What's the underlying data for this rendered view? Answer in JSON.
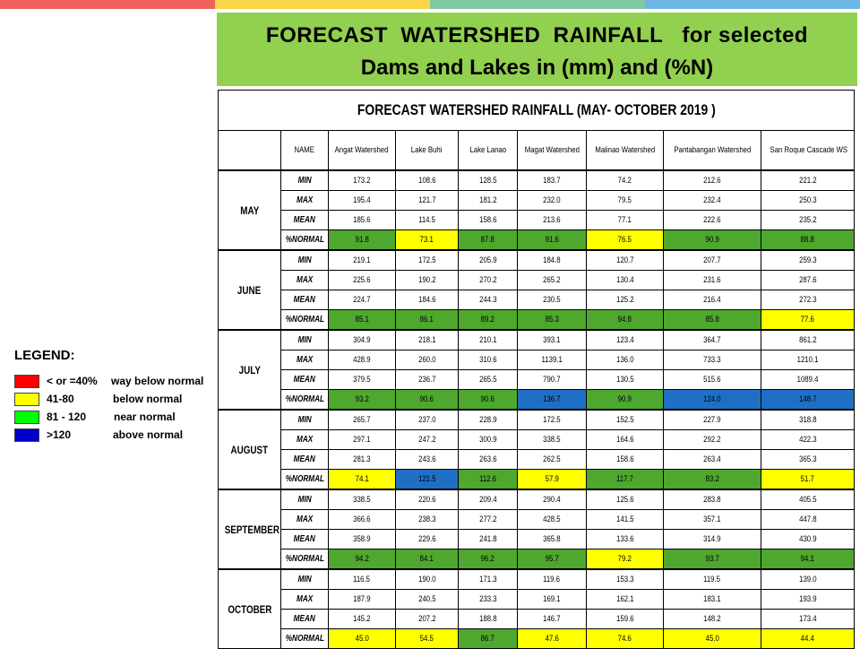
{
  "topbar_colors": [
    "#f0625d",
    "#f9d648",
    "#7fc9a4",
    "#6fb6e6"
  ],
  "banner": {
    "line1": "FORECAST  WATERSHED  RAINFALL   for selected",
    "line2": "Dams and Lakes in (mm) and (%N)",
    "bg_color": "#92d050"
  },
  "legend": {
    "title": "LEGEND:",
    "items": [
      {
        "range": "< or =40%",
        "desc": "way below normal",
        "color": "#ff0000"
      },
      {
        "range": "41-80",
        "desc": "below normal",
        "color": "#ffff00"
      },
      {
        "range": "81 - 120",
        "desc": "near normal",
        "color": "#00ff00"
      },
      {
        "range": ">120",
        "desc": "above normal",
        "color": "#0000cc"
      }
    ]
  },
  "table": {
    "title": "FORECAST WATERSHED RAINFALL (MAY- OCTOBER 2019 )",
    "name_header": "NAME",
    "columns": [
      "Angat Watershed",
      "Lake Buhi",
      "Lake Lanao",
      "Magat Watershed",
      "Malinao Watershed",
      "Pantabangan Watershed",
      "San Roque Cascade WS"
    ],
    "stat_labels": [
      "MIN",
      "MAX",
      "MEAN",
      "%NORMAL"
    ],
    "fill_colors": {
      "below": "#ffff00",
      "near": "#4ea72e",
      "above": "#1f6fc5"
    },
    "months": [
      {
        "name": "MAY",
        "min": [
          "173.2",
          "108.6",
          "128.5",
          "183.7",
          "74.2",
          "212.6",
          "221.2"
        ],
        "max": [
          "195.4",
          "121.7",
          "181.2",
          "232.0",
          "79.5",
          "232.4",
          "250.3"
        ],
        "mean": [
          "185.6",
          "114.5",
          "158.6",
          "213.6",
          "77.1",
          "222.6",
          "235.2"
        ],
        "normal": [
          "91.8",
          "73.1",
          "87.8",
          "91.6",
          "76.5",
          "90.9",
          "88.8"
        ],
        "normal_class": [
          "near",
          "below",
          "near",
          "near",
          "below",
          "near",
          "near"
        ]
      },
      {
        "name": "JUNE",
        "min": [
          "219.1",
          "172.5",
          "205.9",
          "184.8",
          "120.7",
          "207.7",
          "259.3"
        ],
        "max": [
          "225.6",
          "190.2",
          "270.2",
          "265.2",
          "130.4",
          "231.6",
          "287.6"
        ],
        "mean": [
          "224.7",
          "184.6",
          "244.3",
          "230.5",
          "125.2",
          "216.4",
          "272.3"
        ],
        "normal": [
          "85.1",
          "86.1",
          "89.2",
          "85.3",
          "94.8",
          "85.8",
          "77.6"
        ],
        "normal_class": [
          "near",
          "near",
          "near",
          "near",
          "near",
          "near",
          "below"
        ]
      },
      {
        "name": "JULY",
        "min": [
          "304.9",
          "218.1",
          "210.1",
          "393.1",
          "123.4",
          "364.7",
          "861.2"
        ],
        "max": [
          "428.9",
          "260.0",
          "310.6",
          "1139.1",
          "136.0",
          "733.3",
          "1210.1"
        ],
        "mean": [
          "379.5",
          "236.7",
          "265.5",
          "790.7",
          "130.5",
          "515.6",
          "1089.4"
        ],
        "normal": [
          "93.2",
          "90.6",
          "90.6",
          "136.7",
          "90.9",
          "124.0",
          "148.7"
        ],
        "normal_class": [
          "near",
          "near",
          "near",
          "above",
          "near",
          "above",
          "above"
        ]
      },
      {
        "name": "AUGUST",
        "min": [
          "265.7",
          "237.0",
          "228.9",
          "172.5",
          "152.5",
          "227.9",
          "318.8"
        ],
        "max": [
          "297.1",
          "247.2",
          "300.9",
          "338.5",
          "164.6",
          "292.2",
          "422.3"
        ],
        "mean": [
          "281.3",
          "243.6",
          "263.6",
          "262.5",
          "158.6",
          "263.4",
          "365.3"
        ],
        "normal": [
          "74.1",
          "121.5",
          "112.6",
          "57.9",
          "117.7",
          "83.2",
          "51.7"
        ],
        "normal_class": [
          "below",
          "above",
          "near",
          "below",
          "near",
          "near",
          "below"
        ]
      },
      {
        "name": "SEPTEMBER",
        "min": [
          "338.5",
          "220.6",
          "209.4",
          "290.4",
          "125.6",
          "283.8",
          "405.5"
        ],
        "max": [
          "366.6",
          "238.3",
          "277.2",
          "428.5",
          "141.5",
          "357.1",
          "447.8"
        ],
        "mean": [
          "358.9",
          "229.6",
          "241.8",
          "365.8",
          "133.6",
          "314.9",
          "430.9"
        ],
        "normal": [
          "94.2",
          "84.1",
          "96.2",
          "95.7",
          "79.2",
          "93.7",
          "94.1"
        ],
        "normal_class": [
          "near",
          "near",
          "near",
          "near",
          "below",
          "near",
          "near"
        ]
      },
      {
        "name": "OCTOBER",
        "min": [
          "116.5",
          "190.0",
          "171.3",
          "119.6",
          "153.3",
          "119.5",
          "139.0"
        ],
        "max": [
          "187.9",
          "240.5",
          "233.3",
          "169.1",
          "162.1",
          "183.1",
          "193.9"
        ],
        "mean": [
          "145.2",
          "207.2",
          "188.8",
          "146.7",
          "159.6",
          "148.2",
          "173.4"
        ],
        "normal": [
          "45.0",
          "54.5",
          "86.7",
          "47.6",
          "74.6",
          "45.0",
          "44.4"
        ],
        "normal_class": [
          "below",
          "below",
          "near",
          "below",
          "below",
          "below",
          "below"
        ]
      }
    ]
  }
}
